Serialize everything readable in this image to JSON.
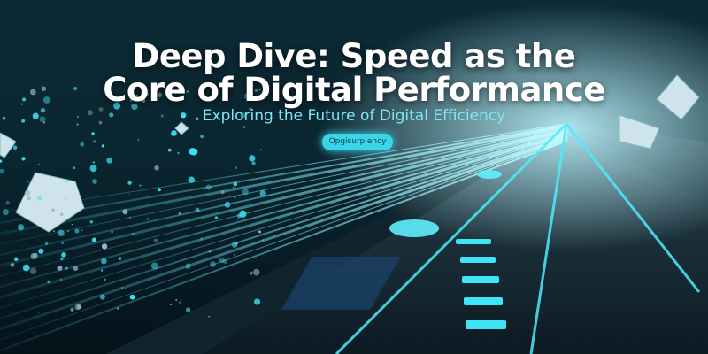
{
  "header": {
    "title_lines": [
      "Deep Dive: Speed as the",
      "Core of Digital Performance"
    ],
    "subtitle": "Exploring the Future of Digital Efficiency",
    "button": "Opgisurpiency"
  }
}
